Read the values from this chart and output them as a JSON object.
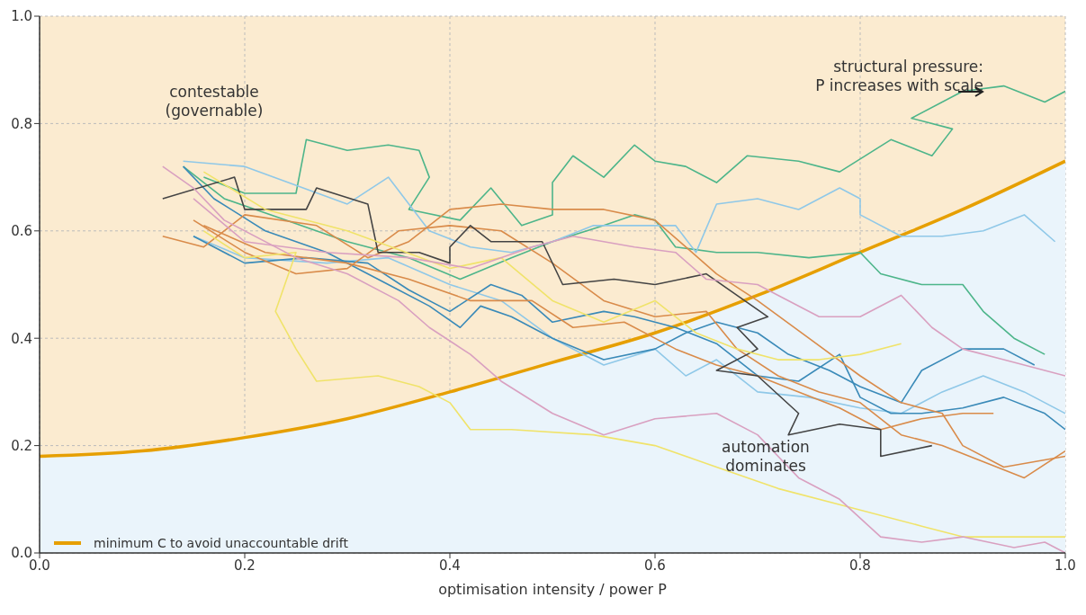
{
  "chart_data": {
    "type": "line",
    "xlabel": "optimisation intensity / power  P",
    "xlim": [
      0,
      1
    ],
    "ylim": [
      0,
      1
    ],
    "xticks": [
      {
        "value": 0,
        "label": "0.0"
      },
      0.2,
      0.4,
      0.6,
      0.8,
      {
        "value": 1,
        "label": "1.0"
      }
    ],
    "yticks": [
      {
        "value": 0,
        "label": "0.0"
      },
      0.2,
      0.4,
      0.6,
      0.8,
      {
        "value": 1,
        "label": "1.0"
      }
    ],
    "grid": true,
    "legend": "bottom left",
    "marker": "none",
    "annotations": [
      "contestable\n(governable)",
      "structural pressure:\nP increases with scale",
      "automation\ndominates"
    ],
    "series": [
      {
        "type": "area",
        "name": "minimum C to avoid unaccountable drift",
        "color": "#e69f00",
        "x": [
          0,
          0.1,
          0.2,
          0.3,
          0.4,
          0.5,
          0.6,
          0.7,
          0.8,
          0.9,
          1
        ],
        "values": [
          0.18,
          0.19,
          0.215,
          0.25,
          0.3,
          0.355,
          0.41,
          0.48,
          0.56,
          0.64,
          0.73
        ]
      },
      {
        "color": "#4db58a",
        "x": [
          0.16,
          0.2,
          0.25,
          0.26,
          0.3,
          0.34,
          0.37,
          0.38,
          0.36,
          0.41,
          0.44,
          0.47,
          0.5,
          0.5,
          0.52,
          0.55,
          0.58,
          0.6,
          0.63,
          0.66,
          0.69,
          0.74,
          0.78,
          0.83,
          0.87,
          0.89,
          0.85,
          0.9,
          0.94,
          0.98,
          1.0
        ],
        "values": [
          0.7,
          0.67,
          0.67,
          0.77,
          0.75,
          0.76,
          0.75,
          0.7,
          0.64,
          0.62,
          0.68,
          0.61,
          0.63,
          0.69,
          0.74,
          0.7,
          0.76,
          0.73,
          0.72,
          0.69,
          0.74,
          0.73,
          0.71,
          0.77,
          0.74,
          0.79,
          0.81,
          0.86,
          0.87,
          0.84,
          0.86
        ]
      },
      {
        "color": "#4db58a",
        "x": [
          0.14,
          0.18,
          0.24,
          0.3,
          0.36,
          0.41,
          0.46,
          0.5,
          0.55,
          0.58,
          0.6,
          0.62,
          0.66,
          0.7,
          0.75,
          0.8,
          0.82,
          0.86,
          0.9,
          0.92,
          0.95,
          0.98
        ],
        "values": [
          0.72,
          0.66,
          0.62,
          0.58,
          0.55,
          0.51,
          0.55,
          0.58,
          0.61,
          0.63,
          0.62,
          0.57,
          0.56,
          0.56,
          0.55,
          0.56,
          0.52,
          0.5,
          0.5,
          0.45,
          0.4,
          0.37
        ]
      },
      {
        "color": "#8fc8e8",
        "x": [
          0.14,
          0.2,
          0.3,
          0.34,
          0.38,
          0.42,
          0.46,
          0.5,
          0.54,
          0.57,
          0.62,
          0.64,
          0.66,
          0.7,
          0.74,
          0.78,
          0.8,
          0.8,
          0.84,
          0.88,
          0.92,
          0.96,
          0.99
        ],
        "values": [
          0.73,
          0.72,
          0.65,
          0.7,
          0.6,
          0.57,
          0.56,
          0.58,
          0.61,
          0.61,
          0.61,
          0.56,
          0.65,
          0.66,
          0.64,
          0.68,
          0.66,
          0.63,
          0.59,
          0.59,
          0.6,
          0.63,
          0.58
        ]
      },
      {
        "color": "#8fc8e8",
        "x": [
          0.15,
          0.2,
          0.28,
          0.34,
          0.4,
          0.45,
          0.5,
          0.55,
          0.6,
          0.63,
          0.66,
          0.7,
          0.75,
          0.8,
          0.84,
          0.88,
          0.92,
          0.96,
          1.0
        ],
        "values": [
          0.59,
          0.55,
          0.54,
          0.55,
          0.5,
          0.47,
          0.4,
          0.35,
          0.38,
          0.33,
          0.36,
          0.3,
          0.29,
          0.27,
          0.26,
          0.3,
          0.33,
          0.3,
          0.26
        ]
      },
      {
        "color": "#3a8ab8",
        "x": [
          0.14,
          0.17,
          0.22,
          0.28,
          0.34,
          0.38,
          0.41,
          0.43,
          0.46,
          0.5,
          0.55,
          0.6,
          0.63,
          0.66,
          0.7,
          0.73,
          0.77,
          0.8,
          0.84,
          0.86,
          0.9,
          0.94,
          0.97
        ],
        "values": [
          0.72,
          0.66,
          0.6,
          0.56,
          0.5,
          0.46,
          0.42,
          0.46,
          0.44,
          0.4,
          0.36,
          0.38,
          0.41,
          0.43,
          0.41,
          0.37,
          0.34,
          0.31,
          0.28,
          0.34,
          0.38,
          0.38,
          0.35
        ]
      },
      {
        "color": "#3a8ab8",
        "x": [
          0.15,
          0.2,
          0.26,
          0.32,
          0.36,
          0.4,
          0.44,
          0.47,
          0.5,
          0.55,
          0.58,
          0.62,
          0.66,
          0.7,
          0.74,
          0.78,
          0.8,
          0.83,
          0.86,
          0.9,
          0.94,
          0.98,
          1.0
        ],
        "values": [
          0.59,
          0.54,
          0.55,
          0.54,
          0.49,
          0.45,
          0.5,
          0.48,
          0.43,
          0.45,
          0.44,
          0.42,
          0.39,
          0.33,
          0.32,
          0.37,
          0.29,
          0.26,
          0.26,
          0.27,
          0.29,
          0.26,
          0.23
        ]
      },
      {
        "color": "#d98b4a",
        "x": [
          0.12,
          0.16,
          0.2,
          0.27,
          0.32,
          0.36,
          0.4,
          0.45,
          0.5,
          0.55,
          0.6,
          0.63,
          0.66,
          0.7,
          0.75,
          0.8,
          0.84,
          0.88,
          0.9,
          0.94,
          0.97,
          1.0
        ],
        "values": [
          0.59,
          0.57,
          0.63,
          0.61,
          0.55,
          0.58,
          0.64,
          0.65,
          0.64,
          0.64,
          0.62,
          0.57,
          0.52,
          0.47,
          0.4,
          0.33,
          0.28,
          0.26,
          0.2,
          0.16,
          0.17,
          0.18
        ]
      },
      {
        "color": "#d98b4a",
        "x": [
          0.15,
          0.2,
          0.25,
          0.3,
          0.35,
          0.4,
          0.45,
          0.5,
          0.55,
          0.6,
          0.65,
          0.68,
          0.72,
          0.76,
          0.8,
          0.84,
          0.88,
          0.92,
          0.96,
          1.0
        ],
        "values": [
          0.62,
          0.56,
          0.52,
          0.53,
          0.6,
          0.61,
          0.6,
          0.54,
          0.47,
          0.44,
          0.45,
          0.38,
          0.33,
          0.3,
          0.28,
          0.22,
          0.2,
          0.17,
          0.14,
          0.19
        ]
      },
      {
        "color": "#d98b4a",
        "x": [
          0.16,
          0.22,
          0.3,
          0.36,
          0.42,
          0.48,
          0.52,
          0.57,
          0.62,
          0.66,
          0.7,
          0.74,
          0.78,
          0.82,
          0.86,
          0.9,
          0.93
        ],
        "values": [
          0.61,
          0.56,
          0.54,
          0.51,
          0.47,
          0.47,
          0.42,
          0.43,
          0.38,
          0.35,
          0.33,
          0.3,
          0.27,
          0.23,
          0.25,
          0.26,
          0.26
        ]
      },
      {
        "color": "#444444",
        "x": [
          0.12,
          0.19,
          0.2,
          0.26,
          0.27,
          0.32,
          0.33,
          0.37,
          0.4,
          0.4,
          0.42,
          0.44,
          0.49,
          0.51,
          0.56,
          0.6,
          0.65,
          0.71,
          0.68,
          0.7,
          0.66,
          0.7,
          0.74,
          0.73,
          0.78,
          0.82,
          0.82,
          0.87
        ],
        "values": [
          0.66,
          0.7,
          0.64,
          0.64,
          0.68,
          0.65,
          0.56,
          0.56,
          0.54,
          0.57,
          0.61,
          0.58,
          0.58,
          0.5,
          0.51,
          0.5,
          0.52,
          0.44,
          0.42,
          0.38,
          0.34,
          0.33,
          0.26,
          0.22,
          0.24,
          0.23,
          0.18,
          0.2
        ]
      },
      {
        "color": "#f0e36a",
        "x": [
          0.16,
          0.22,
          0.28,
          0.3,
          0.4,
          0.45,
          0.5,
          0.55,
          0.6,
          0.64,
          0.68,
          0.72,
          0.76,
          0.8,
          0.84
        ],
        "values": [
          0.71,
          0.64,
          0.61,
          0.6,
          0.53,
          0.55,
          0.47,
          0.43,
          0.47,
          0.41,
          0.38,
          0.36,
          0.36,
          0.37,
          0.39
        ]
      },
      {
        "color": "#f0e36a",
        "x": [
          0.16,
          0.2,
          0.25,
          0.23,
          0.25,
          0.27,
          0.33,
          0.37,
          0.4,
          0.42,
          0.46,
          0.54,
          0.6,
          0.66,
          0.72,
          0.78,
          0.86,
          0.9,
          0.94,
          1.0
        ],
        "values": [
          0.6,
          0.55,
          0.56,
          0.45,
          0.38,
          0.32,
          0.33,
          0.31,
          0.28,
          0.23,
          0.23,
          0.22,
          0.2,
          0.16,
          0.12,
          0.09,
          0.05,
          0.03,
          0.03,
          0.03
        ]
      },
      {
        "color": "#d9a0c0",
        "x": [
          0.12,
          0.15,
          0.18,
          0.25,
          0.3,
          0.35,
          0.38,
          0.42,
          0.45,
          0.5,
          0.55,
          0.6,
          0.66,
          0.7,
          0.74,
          0.78,
          0.82,
          0.86,
          0.9,
          0.95,
          0.98,
          1.0
        ],
        "values": [
          0.72,
          0.68,
          0.62,
          0.55,
          0.52,
          0.47,
          0.42,
          0.37,
          0.32,
          0.26,
          0.22,
          0.25,
          0.26,
          0.22,
          0.14,
          0.1,
          0.03,
          0.02,
          0.03,
          0.01,
          0.02,
          0.0
        ]
      },
      {
        "color": "#d9a0c0",
        "x": [
          0.15,
          0.2,
          0.28,
          0.36,
          0.42,
          0.48,
          0.52,
          0.58,
          0.62,
          0.65,
          0.7,
          0.72,
          0.76,
          0.8,
          0.84,
          0.87,
          0.9,
          0.94,
          0.98,
          1.0
        ],
        "values": [
          0.66,
          0.58,
          0.56,
          0.55,
          0.53,
          0.57,
          0.59,
          0.57,
          0.56,
          0.51,
          0.5,
          0.48,
          0.44,
          0.44,
          0.48,
          0.42,
          0.38,
          0.36,
          0.34,
          0.33
        ]
      }
    ]
  }
}
